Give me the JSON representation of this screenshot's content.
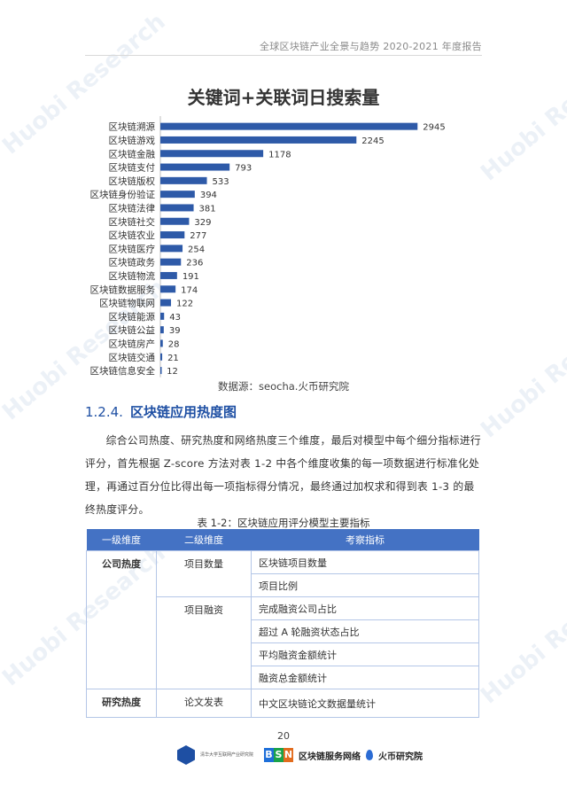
{
  "header": {
    "title": "全球区块链产业全景与趋势 2020-2021 年度报告"
  },
  "chart_data": {
    "type": "bar",
    "orientation": "horizontal",
    "title": "关键词+关联词日搜索量",
    "categories": [
      "区块链溯源",
      "区块链游戏",
      "区块链金融",
      "区块链支付",
      "区块链版权",
      "区块链身份验证",
      "区块链法律",
      "区块链社交",
      "区块链农业",
      "区块链医疗",
      "区块链政务",
      "区块链物流",
      "区块链数据服务",
      "区块链物联网",
      "区块链能源",
      "区块链公益",
      "区块链房产",
      "区块链交通",
      "区块链信息安全"
    ],
    "values": [
      2945,
      2245,
      1178,
      793,
      533,
      394,
      381,
      329,
      277,
      254,
      236,
      191,
      174,
      122,
      43,
      39,
      28,
      21,
      12
    ],
    "xlim": [
      0,
      3500
    ],
    "xticks": [
      0,
      500,
      1000,
      1500,
      2000,
      2500,
      3000,
      3500
    ],
    "xticks_labels": [
      "0",
      "500",
      "1000",
      "1500",
      "2000",
      "2500",
      "3000",
      "3500"
    ],
    "bar_color": "#2e5aa8",
    "grid": false,
    "legend": "none"
  },
  "source": "数据源：seocha.火币研究院",
  "section": {
    "number": "1.2.4.",
    "title": "区块链应用热度图"
  },
  "paragraph": "综合公司热度、研究热度和网络热度三个维度，最后对模型中每个细分指标进行评分，首先根据 Z-score 方法对表 1-2 中各个维度收集的每一项数据进行标准化处理，再通过百分位比得出每一项指标得分情况，最终通过加权求和得到表 1-3 的最终热度评分。",
  "table": {
    "caption": "表 1-2：区块链应用评分模型主要指标",
    "headers": [
      "一级维度",
      "二级维度",
      "考察指标"
    ],
    "rows": [
      {
        "l1": "公司热度",
        "groups": [
          {
            "l2": "项目数量",
            "items": [
              "区块链项目数量",
              "项目比例"
            ]
          },
          {
            "l2": "项目融资",
            "items": [
              "完成融资公司占比",
              "超过 A 轮融资状态占比",
              "平均融资金额统计",
              "融资总金额统计"
            ]
          }
        ]
      },
      {
        "l1": "研究热度",
        "groups": [
          {
            "l2": "论文发表",
            "items": [
              "中文区块链论文数据量统计"
            ]
          }
        ]
      }
    ]
  },
  "page_number": "20",
  "footer": {
    "logo1_text": "清华大学互联网产业研究院",
    "bsn_letters": [
      "B",
      "S",
      "N"
    ],
    "bsn_text": "区块链服务网络",
    "huobi_text": "火币研究院"
  },
  "colors": {
    "accent": "#1e4fa3",
    "table_header": "#4472c4",
    "table_border": "#b4c6e7"
  },
  "watermark": "Huobi Research"
}
